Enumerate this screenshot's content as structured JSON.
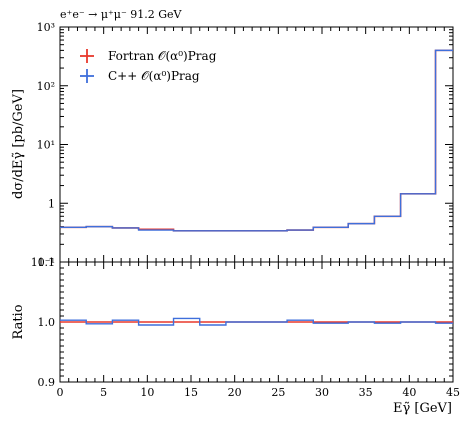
{
  "header": {
    "process_label": "e⁺e⁻ → μ⁺μ⁻ 91.2 GeV"
  },
  "legend": {
    "entries": [
      {
        "label": "Fortran 𝒪(α⁰)Prag",
        "color": "#e8382c"
      },
      {
        "label": "C++ 𝒪(α⁰)Prag",
        "color": "#3f6fdb"
      }
    ]
  },
  "chart_data": [
    {
      "type": "line",
      "panel": "main",
      "ylabel": "dσ/dEγ̃ [pb/GeV]",
      "yscale": "log",
      "ylim": [
        0.1,
        1000
      ],
      "yticks": [
        0.1,
        1,
        10,
        100,
        1000
      ],
      "ytick_labels": [
        "10⁻¹",
        "1",
        "10¹",
        "10²",
        "10³"
      ],
      "xlim": [
        0,
        45
      ],
      "bin_edges": [
        0,
        3,
        6,
        9,
        13,
        16,
        19,
        22,
        26,
        29,
        33,
        36,
        39,
        43,
        45
      ],
      "series": [
        {
          "name": "Fortran 𝒪(α⁰)Prag",
          "color": "#e8382c",
          "values": [
            0.39,
            0.4,
            0.38,
            0.36,
            0.34,
            0.34,
            0.34,
            0.34,
            0.35,
            0.39,
            0.45,
            0.6,
            1.45,
            400
          ]
        },
        {
          "name": "C++ 𝒪(α⁰)Prag",
          "color": "#3f6fdb",
          "values": [
            0.39,
            0.4,
            0.38,
            0.35,
            0.34,
            0.34,
            0.34,
            0.34,
            0.35,
            0.39,
            0.45,
            0.6,
            1.45,
            400
          ]
        }
      ]
    },
    {
      "type": "line",
      "panel": "ratio",
      "ylabel": "Ratio",
      "xlabel": "Eγ̃ [GeV]",
      "ylim": [
        0.9,
        1.1
      ],
      "yticks": [
        0.9,
        1.0,
        1.1
      ],
      "ytick_labels": [
        "0.9",
        "1.0",
        "1.1"
      ],
      "xlim": [
        0,
        45
      ],
      "xticks": [
        0,
        5,
        10,
        15,
        20,
        25,
        30,
        35,
        40,
        45
      ],
      "xtick_labels": [
        "0",
        "5",
        "10",
        "15",
        "20",
        "25",
        "30",
        "35",
        "40",
        "45"
      ],
      "bin_edges": [
        0,
        3,
        6,
        9,
        13,
        16,
        19,
        22,
        26,
        29,
        33,
        36,
        39,
        43,
        45
      ],
      "series": [
        {
          "name": "Fortran 𝒪(α⁰)Prag",
          "color": "#e8382c",
          "values": [
            1.0,
            1.0,
            1.0,
            1.0,
            1.0,
            1.0,
            1.0,
            1.0,
            1.0,
            1.0,
            1.0,
            1.0,
            1.0,
            1.0
          ]
        },
        {
          "name": "C++ 𝒪(α⁰)Prag",
          "color": "#3f6fdb",
          "values": [
            1.003,
            0.997,
            1.003,
            0.995,
            1.006,
            0.995,
            1.0,
            1.0,
            1.003,
            0.998,
            1.0,
            0.998,
            1.0,
            0.998
          ]
        }
      ]
    }
  ]
}
